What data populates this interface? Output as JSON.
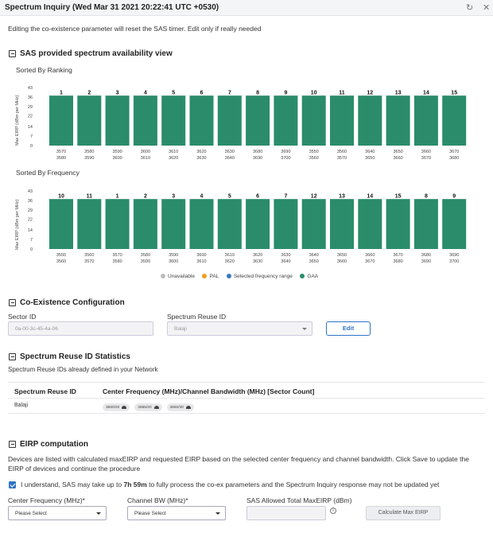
{
  "title_bar": {
    "title": "Spectrum Inquiry (Wed Mar 31 2021 20:22:41 UTC +0530)",
    "refresh_icon": "refresh-icon",
    "close_icon": "close-icon"
  },
  "warning_text": "Editing the co-existence parameter will reset the SAS timer. Edit only if really needed",
  "sas_view": {
    "heading": "SAS provided spectrum availability view",
    "icon": "collapse-icon"
  },
  "colors": {
    "gaa": "#2a8c6a",
    "pal": "#f0a020",
    "selected": "#3b78c4",
    "unavailable": "#bcbcbc"
  },
  "chart_data": [
    {
      "type": "bar",
      "title": "Sorted By Ranking",
      "ylabel": "Max EIRP (dBm per MHz)",
      "ylim": [
        0,
        43
      ],
      "yticks": [
        "43",
        "36",
        "29",
        "22",
        "14",
        "7",
        "0"
      ],
      "categories": [
        "3570 3580",
        "3580 3590",
        "3590 3600",
        "3600 3610",
        "3610 3620",
        "3620 3630",
        "3630 3640",
        "3680 3690",
        "3690 3700",
        "3550 3560",
        "3560 3570",
        "3640 3650",
        "3650 3660",
        "3660 3670",
        "3670 3680"
      ],
      "tick_top": [
        "3570",
        "3580",
        "3590",
        "3600",
        "3610",
        "3620",
        "3630",
        "3680",
        "3690",
        "3550",
        "3560",
        "3640",
        "3650",
        "3660",
        "3670"
      ],
      "tick_bottom": [
        "3580",
        "3590",
        "3600",
        "3610",
        "3620",
        "3630",
        "3640",
        "3690",
        "3700",
        "3560",
        "3570",
        "3650",
        "3660",
        "3670",
        "3680"
      ],
      "series": [
        {
          "values": [
            37,
            37,
            37,
            37,
            37,
            37,
            37,
            37,
            37,
            37,
            37,
            37,
            37,
            37,
            37
          ]
        }
      ],
      "data_labels": [
        "1",
        "2",
        "3",
        "4",
        "5",
        "6",
        "7",
        "8",
        "9",
        "10",
        "11",
        "12",
        "13",
        "14",
        "15"
      ],
      "bar_category": "GAA"
    },
    {
      "type": "bar",
      "title": "Sorted By Frequency",
      "ylabel": "Max EIRP (dBm per MHz)",
      "ylim": [
        0,
        43
      ],
      "yticks": [
        "43",
        "36",
        "29",
        "22",
        "14",
        "7",
        "0"
      ],
      "categories": [
        "3550 3560",
        "3560 3570",
        "3570 3580",
        "3580 3590",
        "3590 3600",
        "3600 3610",
        "3610 3620",
        "3620 3630",
        "3630 3640",
        "3640 3650",
        "3650 3660",
        "3660 3670",
        "3670 3680",
        "3680 3690",
        "3690 3700"
      ],
      "tick_top": [
        "3550",
        "3560",
        "3570",
        "3580",
        "3590",
        "3600",
        "3610",
        "3620",
        "3630",
        "3640",
        "3650",
        "3660",
        "3670",
        "3680",
        "3690"
      ],
      "tick_bottom": [
        "3560",
        "3570",
        "3580",
        "3590",
        "3600",
        "3610",
        "3620",
        "3630",
        "3640",
        "3650",
        "3660",
        "3670",
        "3680",
        "3690",
        "3700"
      ],
      "series": [
        {
          "values": [
            37,
            37,
            37,
            37,
            37,
            37,
            37,
            37,
            37,
            37,
            37,
            37,
            37,
            37,
            37
          ]
        }
      ],
      "data_labels": [
        "10",
        "11",
        "1",
        "2",
        "3",
        "4",
        "5",
        "6",
        "7",
        "12",
        "13",
        "14",
        "15",
        "8",
        "9"
      ],
      "bar_category": "GAA",
      "legend": [
        "Unavailable",
        "PAL",
        "Selected frequency range",
        "GAA"
      ],
      "legend_placement": "bottom-center"
    }
  ],
  "coexistence": {
    "heading": "Co-Existence Configuration",
    "sector_label": "Sector ID",
    "sector_value": "0a-00-3c-45-4a-06",
    "reuse_label": "Spectrum Reuse ID",
    "reuse_value": "Balaji",
    "edit_label": "Edit"
  },
  "reuse_stats": {
    "heading": "Spectrum Reuse ID Statistics",
    "subtitle": "Spectrum Reuse IDs already defined in your Network",
    "col1": "Spectrum Reuse ID",
    "col2": "Center Frequency (MHz)/Channel Bandwidth (MHz) [Sector Count]",
    "rows": [
      {
        "id": "Balaji",
        "chips": [
          "3660/20",
          "3665/20",
          "3660/30"
        ]
      }
    ]
  },
  "eirp": {
    "heading": "EIRP computation",
    "description": "Devices are listed with calculated maxEIRP and requested EIRP based on the selected center frequency and channel bandwidth. Click Save to update the EIRP of devices and continue the procedure",
    "checkbox_pre": "I understand, SAS may take up to ",
    "checkbox_bold": "7h 59m",
    "checkbox_post": " to fully process the co-ex parameters and the Spectrum Inquiry response may not be updated yet",
    "center_freq_label": "Center Frequency (MHz)*",
    "center_freq_value": "Please Select",
    "channel_bw_label": "Channel BW (MHz)*",
    "channel_bw_value": "Please Select",
    "sas_allowed_label": "SAS Allowed Total MaxEIRP (dBm)",
    "calc_button": "Calculate Max EIRP"
  }
}
